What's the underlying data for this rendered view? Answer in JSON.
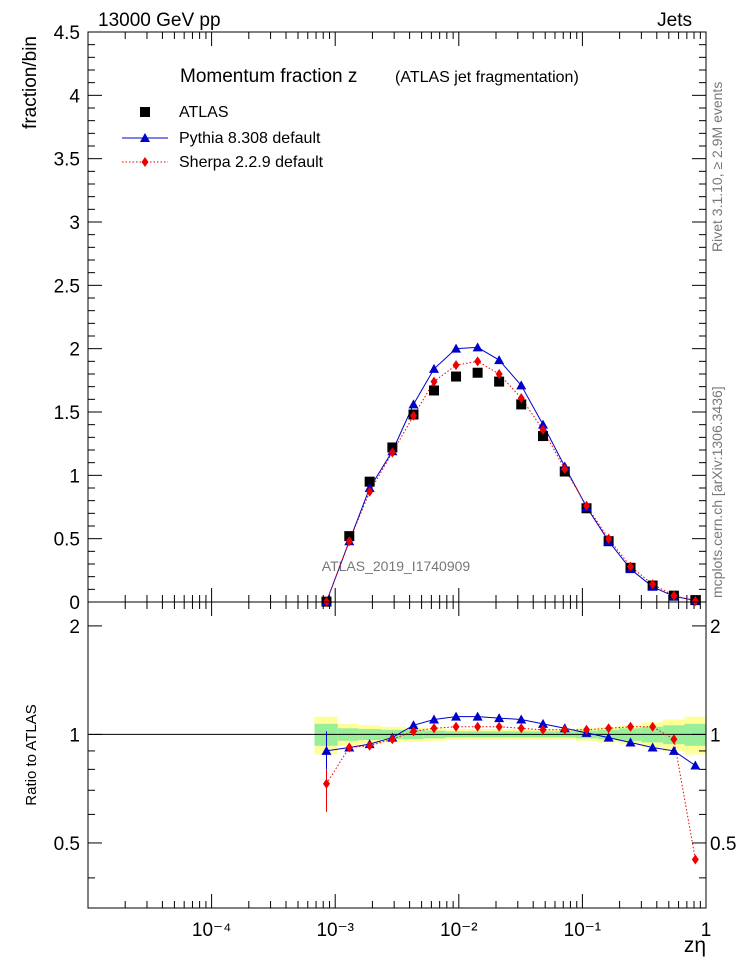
{
  "header": {
    "left": "13000 GeV pp",
    "right": "Jets",
    "side_rivet": "Rivet 3.1.10, ≥ 2.9M events",
    "side_mcplots": "mcplots.cern.ch [arXiv:1306.3436]"
  },
  "chart_data": {
    "type": "scatter",
    "title": "Momentum fraction z",
    "subtitle": "(ATLAS jet fragmentation)",
    "watermark": "ATLAS_2019_I1740909",
    "xlabel": "zη",
    "ylabel": "fraction/bin",
    "ratio_ylabel": "Ratio to ATLAS",
    "x_scale": "log",
    "xlim": [
      1e-05,
      1
    ],
    "ylim": [
      0,
      4.5
    ],
    "ratio_ylim": [
      0.33,
      2.33
    ],
    "legend_position": "top-left",
    "x_ticks": [
      "10⁻⁴",
      "10⁻³",
      "10⁻²",
      "10⁻¹",
      "1"
    ],
    "y_ticks": [
      "0",
      "0.5",
      "1",
      "1.5",
      "2",
      "2.5",
      "3",
      "3.5",
      "4",
      "4.5"
    ],
    "ratio_ticks": [
      "0.5",
      "1",
      "2"
    ],
    "x": [
      0.00085,
      0.0013,
      0.0019,
      0.0029,
      0.0043,
      0.0063,
      0.0095,
      0.0142,
      0.0212,
      0.032,
      0.048,
      0.072,
      0.108,
      0.163,
      0.245,
      0.37,
      0.55,
      0.82
    ],
    "band_edges": [
      0.00068,
      0.00105,
      0.00155,
      0.00235,
      0.0035,
      0.0052,
      0.0078,
      0.0116,
      0.0174,
      0.026,
      0.039,
      0.059,
      0.088,
      0.132,
      0.198,
      0.3,
      0.45,
      0.67,
      1.0
    ],
    "band_inner": [
      0.07,
      0.04,
      0.035,
      0.03,
      0.03,
      0.025,
      0.02,
      0.02,
      0.02,
      0.02,
      0.02,
      0.02,
      0.025,
      0.03,
      0.04,
      0.05,
      0.06,
      0.07
    ],
    "band_outer": [
      0.12,
      0.07,
      0.06,
      0.05,
      0.045,
      0.04,
      0.035,
      0.035,
      0.035,
      0.035,
      0.035,
      0.035,
      0.04,
      0.05,
      0.06,
      0.08,
      0.1,
      0.12
    ],
    "series": [
      {
        "name": "ATLAS",
        "color": "#000000",
        "marker": "square",
        "values": [
          0.003,
          0.52,
          0.95,
          1.22,
          1.48,
          1.67,
          1.78,
          1.81,
          1.74,
          1.56,
          1.31,
          1.03,
          0.74,
          0.48,
          0.27,
          0.13,
          0.05,
          0.015
        ]
      },
      {
        "name": "Pythia 8.308 default",
        "color": "#0000cc",
        "marker": "triangle",
        "line": "solid",
        "values": [
          0.0025,
          0.48,
          0.9,
          1.19,
          1.56,
          1.84,
          2.0,
          2.01,
          1.91,
          1.71,
          1.4,
          1.07,
          0.75,
          0.48,
          0.26,
          0.12,
          0.045,
          0.012
        ],
        "ratio": [
          0.9,
          0.92,
          0.94,
          0.98,
          1.06,
          1.1,
          1.12,
          1.12,
          1.11,
          1.1,
          1.07,
          1.04,
          1.01,
          0.98,
          0.95,
          0.92,
          0.9,
          0.82
        ]
      },
      {
        "name": "Sherpa 2.2.9 default",
        "color": "#ee0000",
        "marker": "diamond",
        "line": "dotted",
        "values": [
          0.002,
          0.48,
          0.87,
          1.18,
          1.47,
          1.74,
          1.87,
          1.9,
          1.8,
          1.61,
          1.36,
          1.05,
          0.76,
          0.5,
          0.28,
          0.14,
          0.05,
          0.007
        ],
        "ratio": [
          0.73,
          0.92,
          0.93,
          0.97,
          1.02,
          1.04,
          1.05,
          1.05,
          1.05,
          1.04,
          1.03,
          1.03,
          1.03,
          1.04,
          1.05,
          1.05,
          0.97,
          0.45
        ]
      }
    ]
  }
}
